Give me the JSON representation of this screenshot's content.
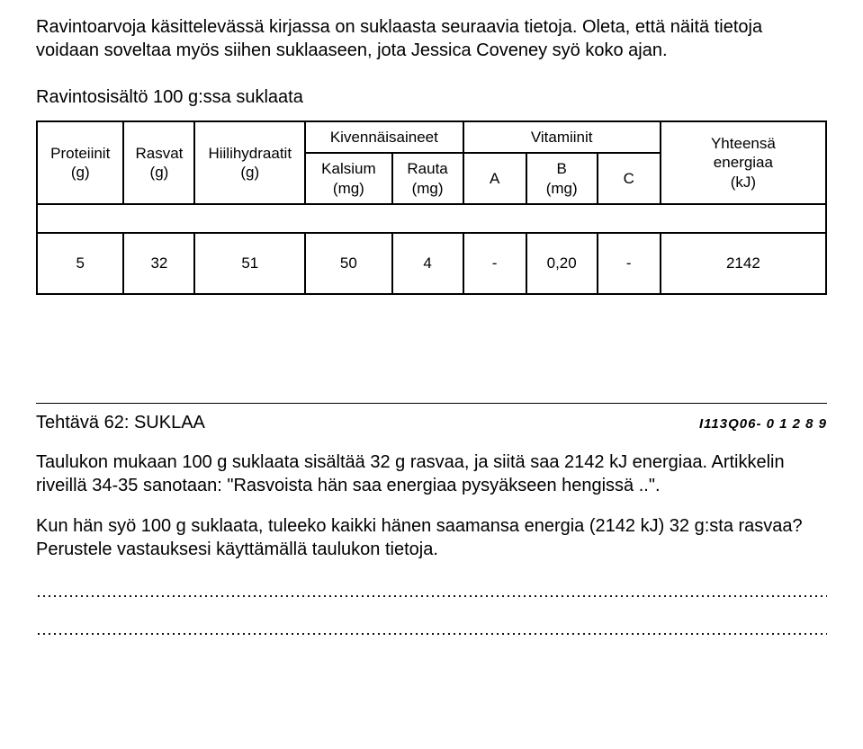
{
  "intro": "Ravintoarvoja käsittelevässä kirjassa on suklaasta seuraavia tietoja. Oleta, että näitä tietoja voidaan soveltaa myös siihen suklaaseen, jota Jessica Coveney syö koko ajan.",
  "subheading": "Ravintosisältö 100 g:ssa suklaata",
  "table": {
    "columns": {
      "protein": "Proteiinit\n(g)",
      "fat": "Rasvat\n(g)",
      "carb": "Hiilihydraatit\n(g)",
      "minerals": "Kivennäisaineet",
      "calcium": "Kalsium\n(mg)",
      "iron": "Rauta\n(mg)",
      "vitamins": "Vitamiinit",
      "vitA": "A",
      "vitB": "B\n(mg)",
      "vitC": "C",
      "energy": "Yhteensä\nenergiaa\n(kJ)"
    },
    "row": {
      "protein": "5",
      "fat": "32",
      "carb": "51",
      "calcium": "50",
      "iron": "4",
      "vitA": "-",
      "vitB": "0,20",
      "vitC": "-",
      "energy": "2142"
    },
    "col_widths_pct": [
      11,
      9,
      14,
      11,
      9,
      8,
      9,
      8,
      21
    ],
    "border_color": "#000000",
    "background_color": "#ffffff",
    "header_fontsize": 17,
    "data_fontsize": 17
  },
  "task": {
    "title": "Tehtävä 62: SUKLAA",
    "code": "I113Q06- 0 1 2 8 9",
    "p1": "Taulukon mukaan 100 g suklaata sisältää 32 g rasvaa, ja siitä saa 2142 kJ energiaa. Artikkelin riveillä 34-35 sanotaan: \"Rasvoista hän saa energiaa pysyäkseen hengissä ..\".",
    "p2": "Kun hän syö 100 g suklaata, tuleeko kaikki hänen saamansa energia (2142 kJ) 32 g:sta rasvaa? Perustele vastauksesi käyttämällä taulukon tietoja."
  }
}
